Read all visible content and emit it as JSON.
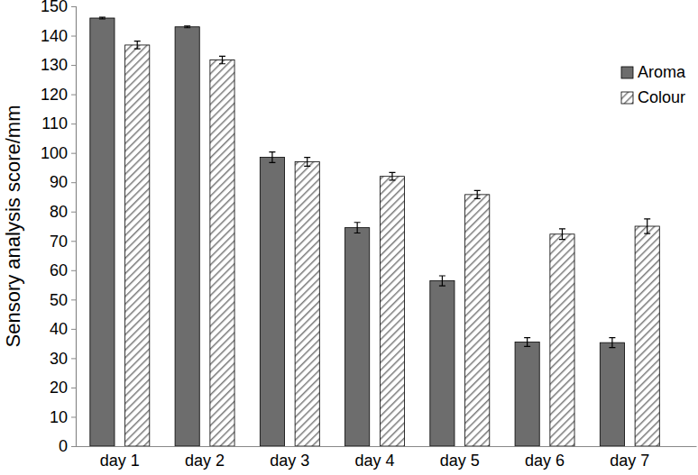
{
  "chart_data": {
    "type": "bar",
    "y_label": "Sensory analysis score/mm",
    "categories": [
      "day 1",
      "day 2",
      "day 3",
      "day 4",
      "day 5",
      "day 6",
      "day 7"
    ],
    "series": [
      {
        "name": "Aroma",
        "color": "#6d6d6d",
        "values": [
          146,
          143,
          98.5,
          74.5,
          56.4,
          35.5,
          35.3
        ],
        "errors": [
          0.3,
          0.3,
          1.8,
          1.8,
          1.7,
          1.5,
          1.7
        ]
      },
      {
        "name": "Colour",
        "color": "#7a7a7a",
        "values": [
          136.8,
          131.7,
          97,
          92,
          85.8,
          72.3,
          75
        ],
        "errors": [
          1.3,
          1.3,
          1.5,
          1.3,
          1.4,
          1.8,
          2.5
        ]
      }
    ],
    "ylim": [
      0,
      150
    ],
    "yticks": [
      0,
      10,
      20,
      30,
      40,
      50,
      60,
      70,
      80,
      90,
      100,
      110,
      120,
      130,
      140,
      150
    ],
    "legend": "upper right"
  }
}
